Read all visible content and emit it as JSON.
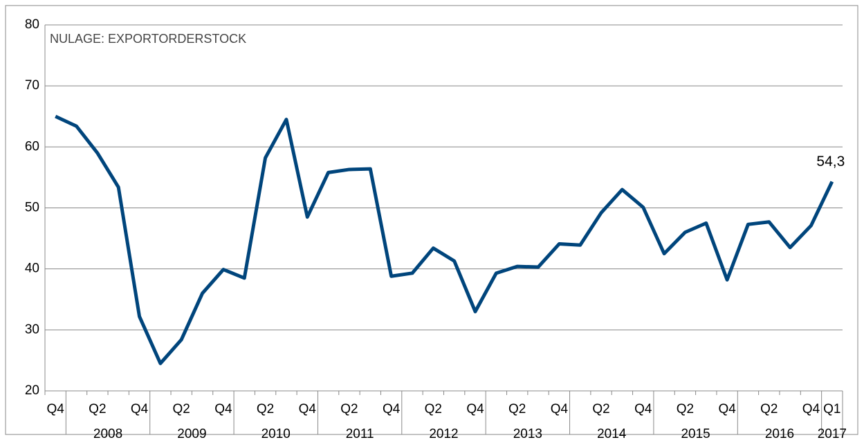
{
  "chart_data": {
    "type": "line",
    "title": "NULAGE: EXPORTORDERSTOCK",
    "categories": [
      "Q4",
      null,
      "Q2",
      null,
      "Q4",
      null,
      "Q2",
      null,
      "Q4",
      null,
      "Q2",
      null,
      "Q4",
      null,
      "Q2",
      null,
      "Q4",
      null,
      "Q2",
      null,
      "Q4",
      null,
      "Q2",
      null,
      "Q4",
      null,
      "Q2",
      null,
      "Q4",
      null,
      "Q2",
      null,
      "Q4",
      null,
      "Q2",
      null,
      "Q4",
      "Q1"
    ],
    "year_groups": [
      "2008",
      "2009",
      "2010",
      "2011",
      "2012",
      "2013",
      "2014",
      "2015",
      "2016",
      "2017"
    ],
    "series": [
      {
        "name": "Exportorderstock",
        "color": "#00457c",
        "values": [
          65.0,
          63.4,
          59.0,
          53.4,
          32.2,
          24.5,
          28.4,
          36.0,
          39.9,
          38.5,
          58.2,
          64.5,
          48.5,
          55.8,
          56.3,
          56.4,
          38.8,
          39.3,
          43.4,
          41.3,
          33.0,
          39.3,
          40.4,
          40.3,
          44.1,
          43.9,
          49.2,
          53.0,
          50.1,
          42.5,
          46.0,
          47.5,
          38.2,
          47.3,
          47.7,
          43.5,
          47.1,
          54.3
        ],
        "value_labels": [
          null,
          null,
          null,
          null,
          null,
          null,
          null,
          null,
          null,
          null,
          null,
          null,
          null,
          null,
          null,
          null,
          null,
          null,
          null,
          null,
          null,
          null,
          null,
          null,
          null,
          null,
          null,
          null,
          null,
          null,
          null,
          null,
          null,
          null,
          null,
          null,
          null,
          "54,3"
        ]
      }
    ],
    "ylim": [
      20,
      80
    ],
    "yticks": [
      20,
      30,
      40,
      50,
      60,
      70,
      80
    ],
    "grid": true
  }
}
